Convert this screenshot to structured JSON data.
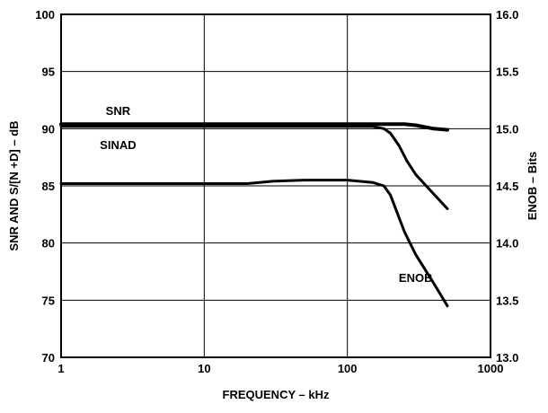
{
  "chart_data": {
    "type": "line",
    "title": "",
    "xlabel": "FREQUENCY – kHz",
    "ylabel": "SNR AND S/[N +D] – dB",
    "ylabel_right": "ENOB – Bits",
    "x_scale": "log",
    "xlim": [
      1,
      1000
    ],
    "ylim": [
      70,
      100
    ],
    "ylim_right": [
      13.0,
      16.0
    ],
    "x_ticks": [
      "1",
      "10",
      "100",
      "1000"
    ],
    "x_tick_values": [
      1,
      10,
      100,
      1000
    ],
    "y_ticks": [
      "70",
      "75",
      "80",
      "85",
      "90",
      "95",
      "100"
    ],
    "y_tick_values": [
      70,
      75,
      80,
      85,
      90,
      95,
      100
    ],
    "y_ticks_right": [
      "13.0",
      "13.5",
      "14.0",
      "14.5",
      "15.0",
      "15.5",
      "16.0"
    ],
    "y_tick_values_right": [
      13.0,
      13.5,
      14.0,
      14.5,
      15.0,
      15.5,
      16.0
    ],
    "grid": true,
    "series": [
      {
        "name": "SNR",
        "axis": "left",
        "x": [
          1,
          10,
          50,
          100,
          150,
          200,
          250,
          300,
          400,
          500
        ],
        "y": [
          90.4,
          90.4,
          90.4,
          90.4,
          90.4,
          90.4,
          90.4,
          90.3,
          90.0,
          89.9
        ]
      },
      {
        "name": "SINAD",
        "axis": "left",
        "x": [
          1,
          10,
          100,
          150,
          180,
          200,
          230,
          260,
          300,
          400,
          500
        ],
        "y": [
          90.2,
          90.2,
          90.2,
          90.2,
          90.0,
          89.6,
          88.5,
          87.2,
          86.0,
          84.3,
          83.0
        ]
      },
      {
        "name": "ENOB",
        "axis": "right",
        "x": [
          1,
          10,
          20,
          30,
          50,
          100,
          150,
          180,
          200,
          250,
          300,
          400,
          500
        ],
        "y": [
          14.52,
          14.52,
          14.52,
          14.54,
          14.55,
          14.55,
          14.53,
          14.5,
          14.42,
          14.1,
          13.9,
          13.65,
          13.45
        ]
      }
    ],
    "annotations": [
      {
        "text": "SNR",
        "x": 2.5,
        "y": 91.6
      },
      {
        "text": "SINAD",
        "x": 2.5,
        "y": 88.6
      },
      {
        "text": "ENOB",
        "x": 300,
        "y": 77
      }
    ]
  }
}
